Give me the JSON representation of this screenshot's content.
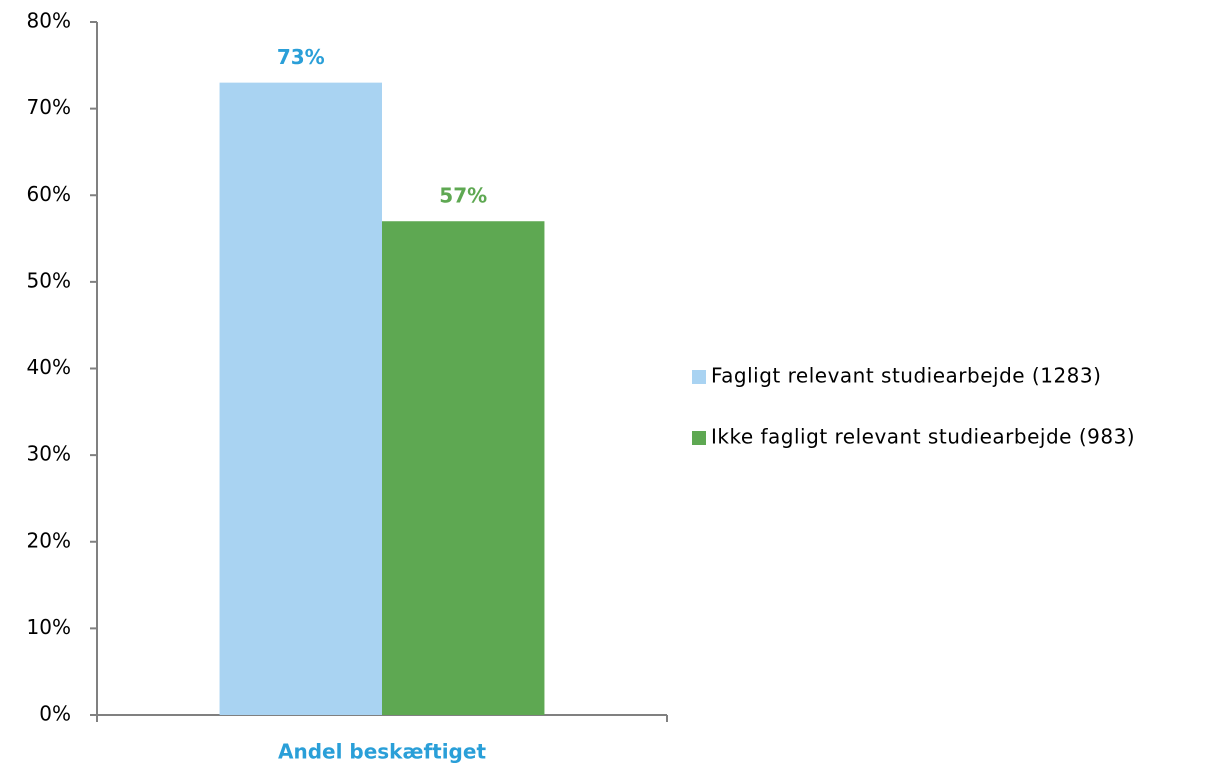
{
  "chart_data": {
    "type": "bar",
    "categories": [
      "Andel beskæftiget"
    ],
    "category_label_color": "#2a9fd8",
    "series": [
      {
        "name": "Fagligt relevant studiearbejde (1283)",
        "color": "#a9d3f2",
        "label_color": "#2a9fd8",
        "values": [
          73
        ],
        "value_labels": [
          "73%"
        ]
      },
      {
        "name": "Ikke fagligt relevant studiearbejde (983)",
        "color": "#5ea852",
        "label_color": "#5ea852",
        "values": [
          57
        ],
        "value_labels": [
          "57%"
        ]
      }
    ],
    "ylim": [
      0,
      80
    ],
    "yticks": [
      {
        "value": 0,
        "label": "0%"
      },
      {
        "value": 10,
        "label": "10%"
      },
      {
        "value": 20,
        "label": "20%"
      },
      {
        "value": 30,
        "label": "30%"
      },
      {
        "value": 40,
        "label": "40%"
      },
      {
        "value": 50,
        "label": "50%"
      },
      {
        "value": 60,
        "label": "60%"
      },
      {
        "value": 70,
        "label": "70%"
      },
      {
        "value": 80,
        "label": "80%"
      }
    ],
    "grid": false,
    "legend": "right"
  }
}
